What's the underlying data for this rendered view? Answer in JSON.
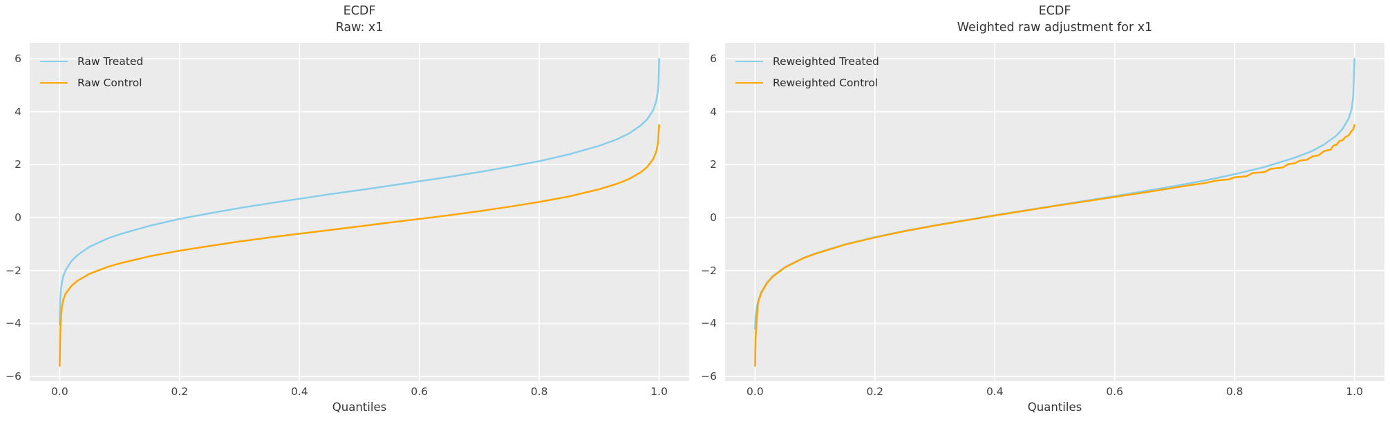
{
  "figure": {
    "background": "#ffffff",
    "axes_background": "#ebebeb",
    "grid_color": "#ffffff",
    "title_color": "#333333",
    "tick_color": "#424242"
  },
  "chart_data": [
    {
      "type": "line",
      "title": "ECDF",
      "subtitle": "Raw: x1",
      "xlabel": "Quantiles",
      "grid": true,
      "legend_position": "upper-left",
      "xlim": [
        -0.05,
        1.05
      ],
      "ylim": [
        -6.18,
        6.6
      ],
      "x_ticks": [
        {
          "value": 0.0,
          "label": "0.0"
        },
        {
          "value": 0.2,
          "label": "0.2"
        },
        {
          "value": 0.4,
          "label": "0.4"
        },
        {
          "value": 0.6,
          "label": "0.6"
        },
        {
          "value": 0.8,
          "label": "0.8"
        },
        {
          "value": 1.0,
          "label": "1.0"
        }
      ],
      "y_ticks": [
        {
          "value": -6,
          "label": "−6"
        },
        {
          "value": -4,
          "label": "−4"
        },
        {
          "value": -2,
          "label": "−2"
        },
        {
          "value": 0,
          "label": "0"
        },
        {
          "value": 2,
          "label": "2"
        },
        {
          "value": 4,
          "label": "4"
        },
        {
          "value": 6,
          "label": "6"
        }
      ],
      "series": [
        {
          "name": "Raw Treated",
          "color": "#87ceeb",
          "points": [
            [
              0,
              -4.05
            ],
            [
              0.001,
              -3.1
            ],
            [
              0.002,
              -2.7
            ],
            [
              0.004,
              -2.42
            ],
            [
              0.006,
              -2.22
            ],
            [
              0.01,
              -1.98
            ],
            [
              0.02,
              -1.63
            ],
            [
              0.03,
              -1.41
            ],
            [
              0.05,
              -1.1
            ],
            [
              0.08,
              -0.79
            ],
            [
              0.1,
              -0.63
            ],
            [
              0.15,
              -0.31
            ],
            [
              0.2,
              -0.05
            ],
            [
              0.25,
              0.16
            ],
            [
              0.3,
              0.36
            ],
            [
              0.35,
              0.54
            ],
            [
              0.4,
              0.71
            ],
            [
              0.45,
              0.88
            ],
            [
              0.5,
              1.04
            ],
            [
              0.55,
              1.2
            ],
            [
              0.6,
              1.37
            ],
            [
              0.65,
              1.54
            ],
            [
              0.7,
              1.72
            ],
            [
              0.75,
              1.92
            ],
            [
              0.8,
              2.13
            ],
            [
              0.85,
              2.39
            ],
            [
              0.9,
              2.71
            ],
            [
              0.93,
              2.96
            ],
            [
              0.95,
              3.18
            ],
            [
              0.97,
              3.49
            ],
            [
              0.98,
              3.71
            ],
            [
              0.99,
              4.06
            ],
            [
              0.995,
              4.39
            ],
            [
              0.998,
              4.78
            ],
            [
              0.999,
              5.05
            ],
            [
              1,
              6.0
            ]
          ]
        },
        {
          "name": "Raw Control",
          "color": "#ffa500",
          "points": [
            [
              0,
              -5.6
            ],
            [
              0.001,
              -4.3
            ],
            [
              0.002,
              -3.8
            ],
            [
              0.004,
              -3.35
            ],
            [
              0.006,
              -3.1
            ],
            [
              0.01,
              -2.87
            ],
            [
              0.02,
              -2.57
            ],
            [
              0.03,
              -2.38
            ],
            [
              0.05,
              -2.12
            ],
            [
              0.08,
              -1.86
            ],
            [
              0.1,
              -1.73
            ],
            [
              0.15,
              -1.46
            ],
            [
              0.2,
              -1.25
            ],
            [
              0.25,
              -1.07
            ],
            [
              0.3,
              -0.9
            ],
            [
              0.35,
              -0.75
            ],
            [
              0.4,
              -0.61
            ],
            [
              0.45,
              -0.47
            ],
            [
              0.5,
              -0.33
            ],
            [
              0.55,
              -0.19
            ],
            [
              0.6,
              -0.05
            ],
            [
              0.65,
              0.09
            ],
            [
              0.7,
              0.24
            ],
            [
              0.75,
              0.41
            ],
            [
              0.8,
              0.59
            ],
            [
              0.85,
              0.8
            ],
            [
              0.9,
              1.07
            ],
            [
              0.93,
              1.28
            ],
            [
              0.95,
              1.46
            ],
            [
              0.97,
              1.72
            ],
            [
              0.98,
              1.91
            ],
            [
              0.99,
              2.21
            ],
            [
              0.995,
              2.48
            ],
            [
              0.998,
              2.81
            ],
            [
              1,
              3.5
            ]
          ]
        }
      ]
    },
    {
      "type": "line",
      "title": "ECDF",
      "subtitle": "Weighted raw adjustment for x1",
      "xlabel": "Quantiles",
      "grid": true,
      "legend_position": "upper-left",
      "xlim": [
        -0.05,
        1.05
      ],
      "ylim": [
        -6.18,
        6.6
      ],
      "x_ticks": [
        {
          "value": 0.0,
          "label": "0.0"
        },
        {
          "value": 0.2,
          "label": "0.2"
        },
        {
          "value": 0.4,
          "label": "0.4"
        },
        {
          "value": 0.6,
          "label": "0.6"
        },
        {
          "value": 0.8,
          "label": "0.8"
        },
        {
          "value": 1.0,
          "label": "1.0"
        }
      ],
      "y_ticks": [
        {
          "value": -6,
          "label": "−6"
        },
        {
          "value": -4,
          "label": "−4"
        },
        {
          "value": -2,
          "label": "−2"
        },
        {
          "value": 0,
          "label": "0"
        },
        {
          "value": 2,
          "label": "2"
        },
        {
          "value": 4,
          "label": "4"
        },
        {
          "value": 6,
          "label": "6"
        }
      ],
      "series": [
        {
          "name": "Reweighted Treated",
          "color": "#87ceeb",
          "points": [
            [
              0,
              -4.2
            ],
            [
              0.001,
              -3.7
            ],
            [
              0.003,
              -3.35
            ],
            [
              0.005,
              -3.18
            ],
            [
              0.01,
              -2.83
            ],
            [
              0.02,
              -2.45
            ],
            [
              0.03,
              -2.2
            ],
            [
              0.05,
              -1.87
            ],
            [
              0.08,
              -1.53
            ],
            [
              0.1,
              -1.36
            ],
            [
              0.15,
              -1.01
            ],
            [
              0.2,
              -0.74
            ],
            [
              0.25,
              -0.5
            ],
            [
              0.3,
              -0.29
            ],
            [
              0.35,
              -0.1
            ],
            [
              0.4,
              0.09
            ],
            [
              0.45,
              0.27
            ],
            [
              0.5,
              0.45
            ],
            [
              0.55,
              0.63
            ],
            [
              0.6,
              0.81
            ],
            [
              0.65,
              1.0
            ],
            [
              0.7,
              1.19
            ],
            [
              0.75,
              1.4
            ],
            [
              0.8,
              1.64
            ],
            [
              0.85,
              1.91
            ],
            [
              0.9,
              2.26
            ],
            [
              0.93,
              2.52
            ],
            [
              0.95,
              2.77
            ],
            [
              0.97,
              3.1
            ],
            [
              0.98,
              3.35
            ],
            [
              0.99,
              3.73
            ],
            [
              0.995,
              4.08
            ],
            [
              0.998,
              4.6
            ],
            [
              1,
              6.0
            ]
          ]
        },
        {
          "name": "Reweighted Control",
          "color": "#ffa500",
          "points": [
            [
              0,
              -5.6
            ],
            [
              0.001,
              -4.5
            ],
            [
              0.003,
              -3.8
            ],
            [
              0.005,
              -3.22
            ],
            [
              0.01,
              -2.86
            ],
            [
              0.02,
              -2.47
            ],
            [
              0.03,
              -2.22
            ],
            [
              0.05,
              -1.88
            ],
            [
              0.08,
              -1.54
            ],
            [
              0.1,
              -1.37
            ],
            [
              0.15,
              -1.02
            ],
            [
              0.2,
              -0.75
            ],
            [
              0.25,
              -0.51
            ],
            [
              0.3,
              -0.3
            ],
            [
              0.35,
              -0.11
            ],
            [
              0.4,
              0.08
            ],
            [
              0.45,
              0.26
            ],
            [
              0.5,
              0.44
            ],
            [
              0.55,
              0.61
            ],
            [
              0.6,
              0.78
            ],
            [
              0.65,
              0.95
            ],
            [
              0.7,
              1.13
            ],
            [
              0.73,
              1.24
            ],
            [
              0.75,
              1.3
            ],
            [
              0.77,
              1.4
            ],
            [
              0.79,
              1.44
            ],
            [
              0.8,
              1.52
            ],
            [
              0.82,
              1.56
            ],
            [
              0.83,
              1.68
            ],
            [
              0.85,
              1.72
            ],
            [
              0.86,
              1.84
            ],
            [
              0.88,
              1.89
            ],
            [
              0.89,
              2.02
            ],
            [
              0.9,
              2.05
            ],
            [
              0.91,
              2.16
            ],
            [
              0.92,
              2.18
            ],
            [
              0.93,
              2.31
            ],
            [
              0.94,
              2.35
            ],
            [
              0.95,
              2.52
            ],
            [
              0.96,
              2.56
            ],
            [
              0.965,
              2.72
            ],
            [
              0.97,
              2.75
            ],
            [
              0.975,
              2.89
            ],
            [
              0.98,
              2.92
            ],
            [
              0.985,
              3.04
            ],
            [
              0.99,
              3.1
            ],
            [
              0.995,
              3.27
            ],
            [
              0.998,
              3.33
            ],
            [
              1,
              3.5
            ]
          ]
        }
      ]
    }
  ]
}
